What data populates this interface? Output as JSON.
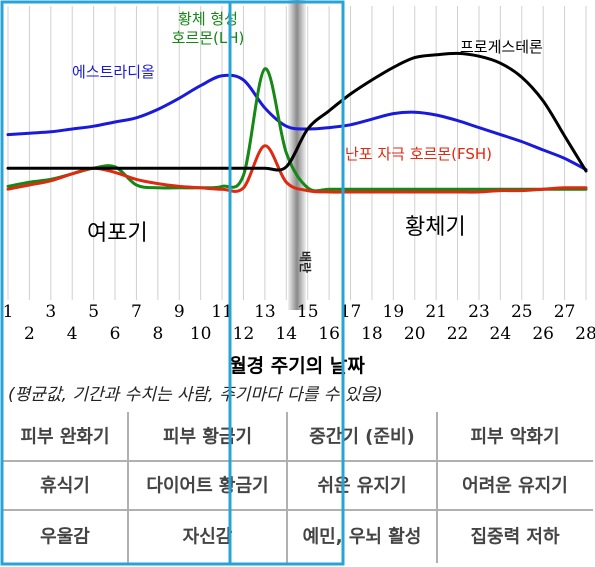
{
  "chart_data": {
    "type": "line",
    "x": [
      1,
      2,
      3,
      4,
      5,
      6,
      7,
      8,
      9,
      10,
      11,
      12,
      13,
      14,
      15,
      16,
      17,
      18,
      19,
      20,
      21,
      22,
      23,
      24,
      25,
      26,
      27,
      28
    ],
    "x_ticks_odd": [
      "1",
      "3",
      "5",
      "7",
      "9",
      "11",
      "13",
      "15",
      "17",
      "19",
      "21",
      "23",
      "25",
      "27"
    ],
    "x_ticks_even": [
      "2",
      "4",
      "6",
      "8",
      "10",
      "12",
      "14",
      "16",
      "18",
      "20",
      "22",
      "24",
      "26",
      "28"
    ],
    "xlabel": "월경 주기의 날짜",
    "note": "(평균값, 기간과 수치는 사람, 주기마다 다를 수 있음)",
    "ovulation_label": "배란",
    "phases": [
      "여포기",
      "황체기"
    ],
    "series": [
      {
        "name": "에스트라디올",
        "color": "#1a1adb",
        "values": [
          41,
          42,
          43,
          45,
          47,
          50,
          53,
          59,
          67,
          76,
          83,
          80,
          60,
          47,
          45,
          46,
          48,
          52,
          56,
          57,
          55,
          51,
          46,
          41,
          36,
          30,
          24,
          16
        ]
      },
      {
        "name": "황체 형성 호르몬(LH)",
        "color": "#158815",
        "values": [
          4,
          7,
          9,
          13,
          17,
          18,
          5,
          3,
          3,
          3,
          4,
          12,
          88,
          28,
          3,
          2,
          2,
          2,
          2,
          2,
          2,
          2,
          2,
          2,
          2,
          2,
          2,
          2
        ]
      },
      {
        "name": "난포 자극 호르몬(FSH)",
        "color": "#dd2a10",
        "values": [
          2,
          5,
          8,
          13,
          17,
          14,
          9,
          6,
          4,
          3,
          2,
          3,
          33,
          7,
          1,
          0,
          0,
          0,
          0,
          0,
          0,
          0,
          0,
          1,
          1,
          2,
          3,
          3
        ]
      },
      {
        "name": "프로게스테론",
        "color": "#000000",
        "values": [
          17,
          17,
          17,
          17,
          17,
          17,
          17,
          17,
          17,
          17,
          17,
          17,
          17,
          18,
          45,
          58,
          70,
          80,
          89,
          96,
          98,
          99,
          97,
          92,
          82,
          65,
          40,
          15
        ]
      }
    ],
    "ylim": [
      0,
      100
    ],
    "grid": true
  },
  "table": {
    "rows": [
      [
        "피부 완화기",
        "피부 황금기",
        "중간기 (준비)",
        "피부 악화기"
      ],
      [
        "휴식기",
        "다이어트 황금기",
        "쉬운 유지기",
        "어려운 유지기"
      ],
      [
        "우울감",
        "자신감",
        "예민, 우뇌 활성",
        "집중력 저하"
      ]
    ]
  }
}
